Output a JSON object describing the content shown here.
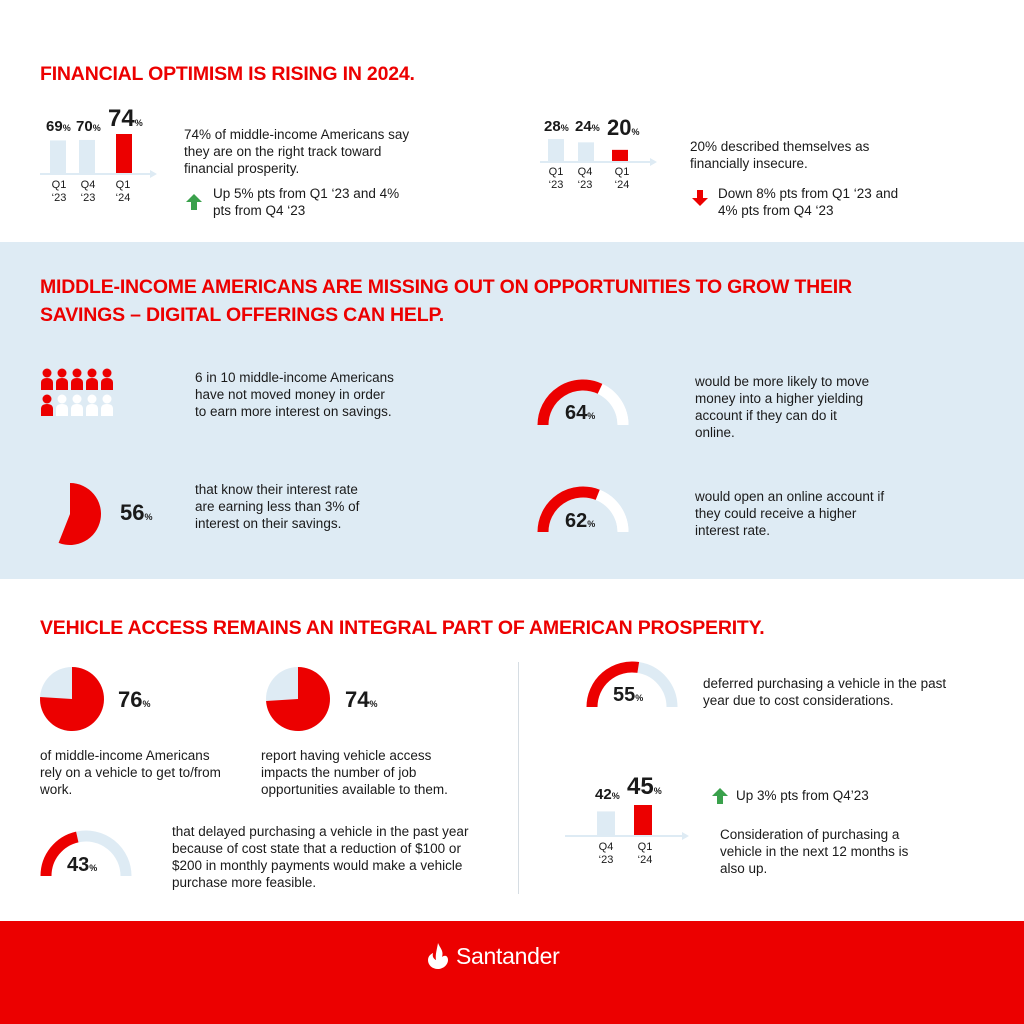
{
  "section1": {
    "title": "FINANCIAL OPTIMISM IS RISING IN 2024.",
    "left": {
      "values": [
        "69",
        "70",
        "74"
      ],
      "fractions": [
        0.69,
        0.7,
        0.74
      ],
      "ticks": [
        [
          "Q1",
          "‘23"
        ],
        [
          "Q4",
          "‘23"
        ],
        [
          "Q1",
          "‘24"
        ]
      ],
      "text": "74% of middle-income Americans say they are on the right track toward financial prosperity.",
      "change": "Up 5% pts from Q1 ‘23 and 4% pts from Q4 ‘23",
      "change_color": "#3aa14c"
    },
    "right": {
      "values": [
        "28",
        "24",
        "20"
      ],
      "fractions": [
        0.28,
        0.24,
        0.2
      ],
      "ticks": [
        [
          "Q1",
          "‘23"
        ],
        [
          "Q4",
          "‘23"
        ],
        [
          "Q1",
          "‘24"
        ]
      ],
      "text": "20% described themselves as financially insecure.",
      "change": "Down 8% pts from Q1 ‘23 and 4% pts from Q4 ‘23",
      "change_color": "#ec0000"
    }
  },
  "section2": {
    "title_line1": "MIDDLE-INCOME AMERICANS ARE MISSING OUT ON OPPORTUNITIES TO GROW THEIR",
    "title_line2": "SAVINGS – DIGITAL OFFERINGS CAN HELP.",
    "people": {
      "filled": 6,
      "total": 10,
      "text": "6 in 10 middle-income Americans have not moved money in order to earn more interest on savings."
    },
    "pie56": {
      "value": "56",
      "fraction": 0.56,
      "text": "that know their interest rate are earning less than 3% of interest on their savings."
    },
    "gauge64": {
      "value": "64",
      "fraction": 0.64,
      "text": "would be more likely to move money into a higher yielding account if they can do it online."
    },
    "gauge62": {
      "value": "62",
      "fraction": 0.62,
      "text": "would open an online account if they could receive a higher interest rate."
    }
  },
  "section3": {
    "title": "VEHICLE ACCESS REMAINS AN INTEGRAL PART OF AMERICAN PROSPERITY.",
    "pie76": {
      "value": "76",
      "fraction": 0.76,
      "text": "of middle-income Americans rely on a vehicle to get to/from work."
    },
    "pie74": {
      "value": "74",
      "fraction": 0.74,
      "text": "report having vehicle access impacts the number of job opportunities available to them."
    },
    "gauge43": {
      "value": "43",
      "fraction": 0.43,
      "text": "that delayed purchasing a vehicle in the past year because of cost state that a reduction of $100 or $200 in monthly payments would make a vehicle purchase more feasible."
    },
    "gauge55": {
      "value": "55",
      "fraction": 0.55,
      "text": "deferred purchasing a vehicle in the past year due to cost considerations."
    },
    "bars": {
      "values": [
        "42",
        "45"
      ],
      "fractions": [
        0.42,
        0.45
      ],
      "ticks": [
        [
          "Q4",
          "‘23"
        ],
        [
          "Q1",
          "‘24"
        ]
      ],
      "change": "Up 3% pts from Q4’23",
      "text": "Consideration of purchasing a vehicle in the next 12 months is also up."
    }
  },
  "pct_sign": "%",
  "colors": {
    "red": "#ec0000",
    "light": "#deebf4",
    "green": "#3aa14c"
  },
  "footer": {
    "brand": "Santander",
    "logo_icon": "flame-icon"
  }
}
